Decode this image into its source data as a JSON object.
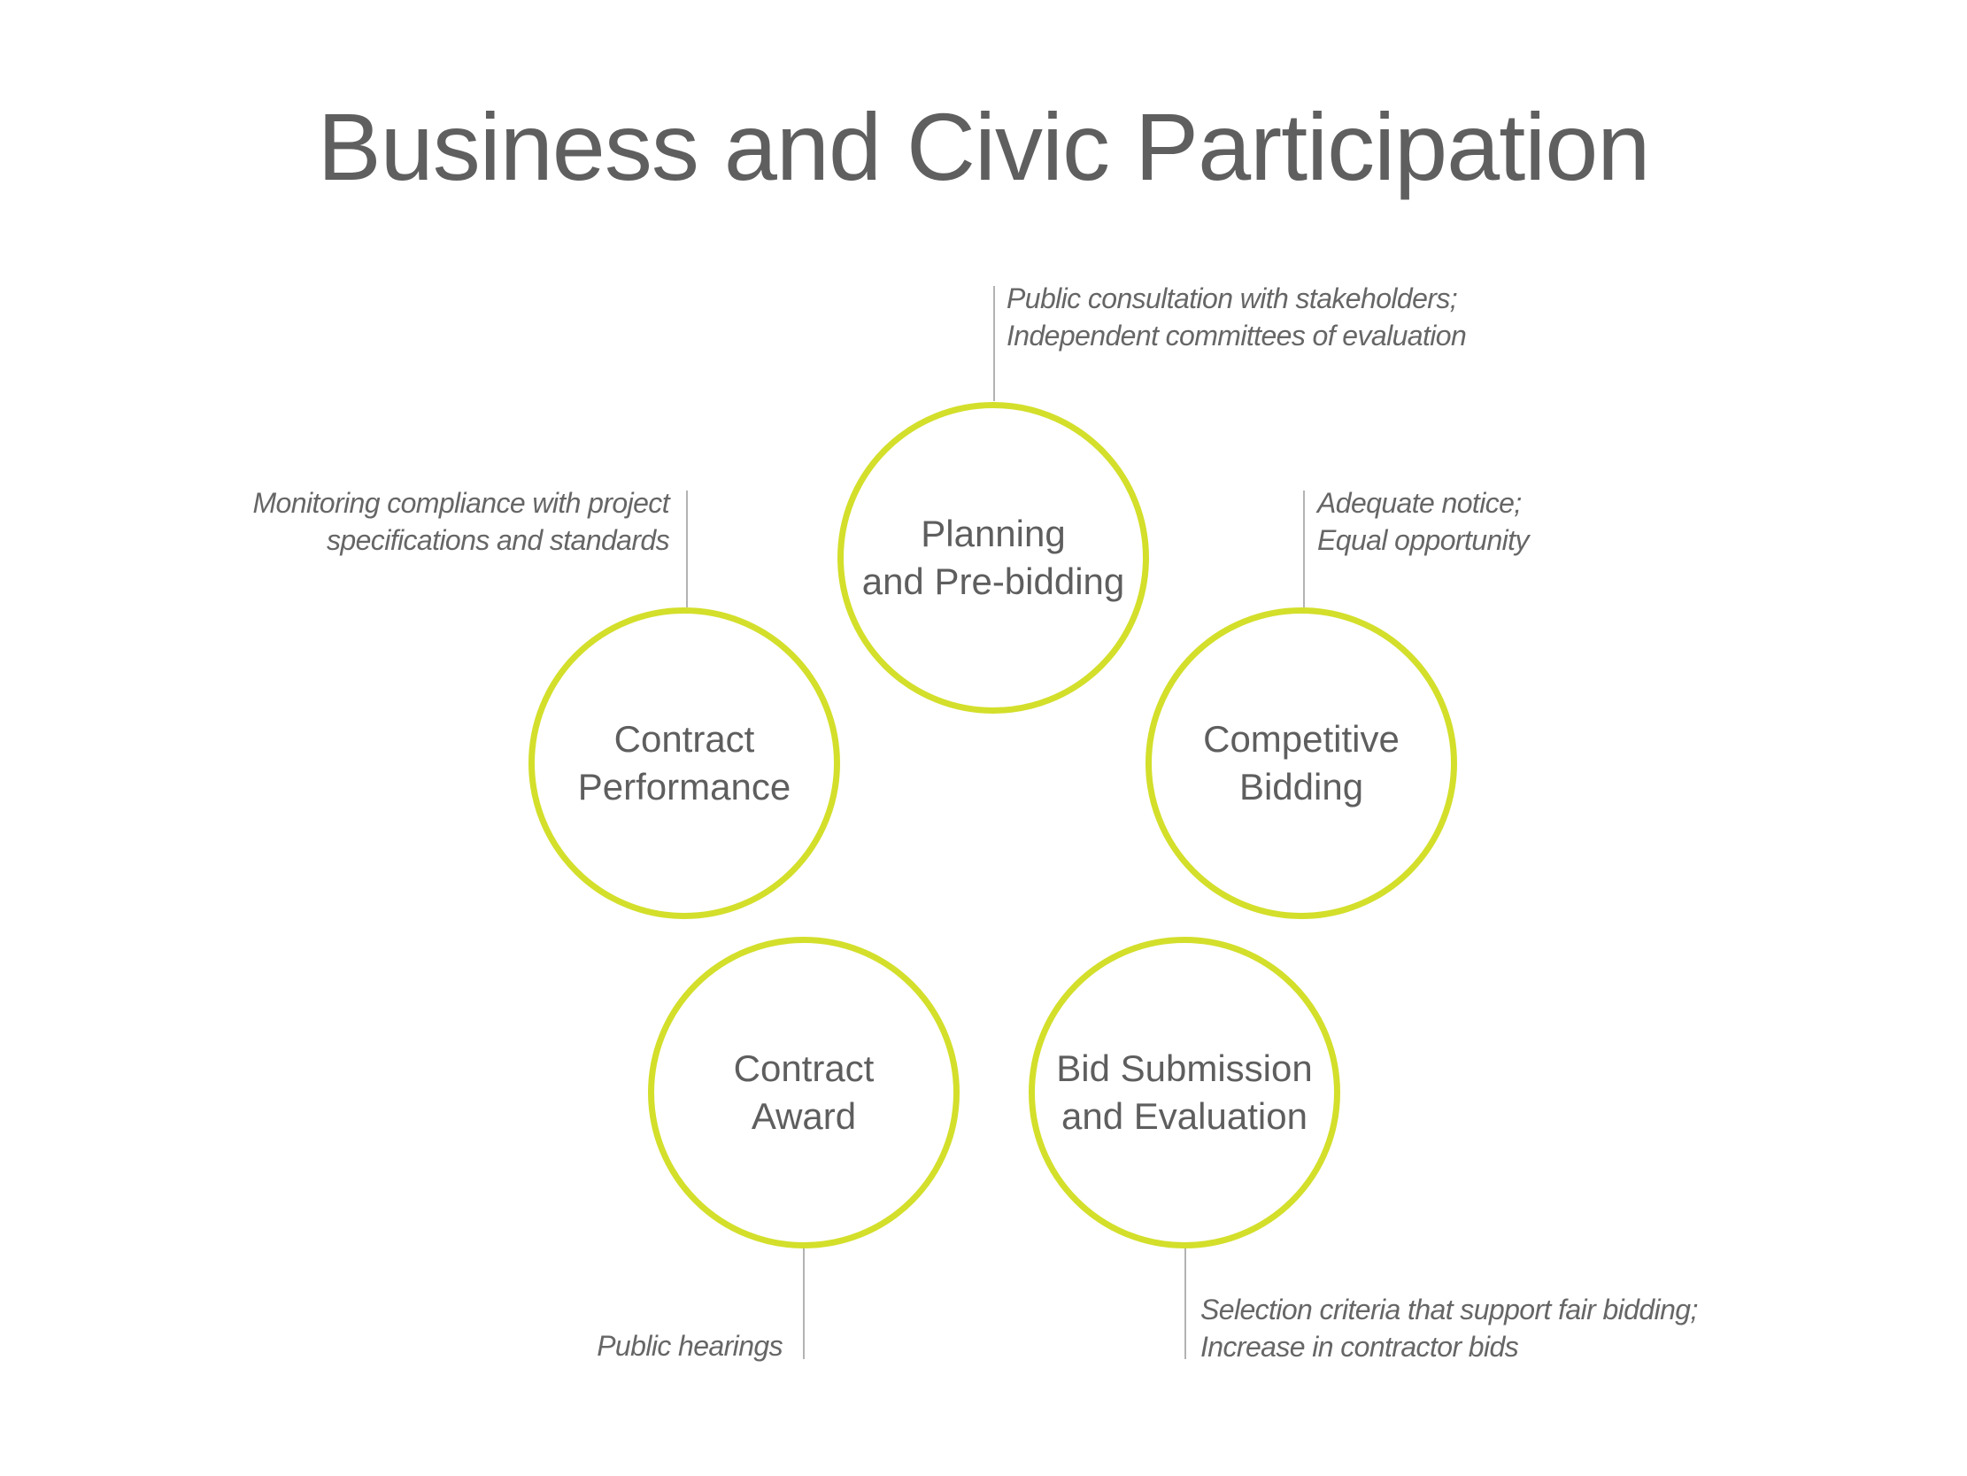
{
  "title": "Business and Civic Participation",
  "stages": {
    "planning": {
      "label": "Planning\nand Pre-bidding"
    },
    "competitive_bidding": {
      "label": "Competitive\nBidding"
    },
    "bid_submission": {
      "label": "Bid Submission\nand Evaluation"
    },
    "contract_award": {
      "label": "Contract\nAward"
    },
    "contract_performance": {
      "label": "Contract\nPerformance"
    }
  },
  "notes": {
    "planning": [
      "Public consultation with stakeholders;",
      "Independent committees of evaluation"
    ],
    "competitive_bidding": [
      "Adequate notice;",
      "Equal opportunity"
    ],
    "bid_submission": [
      "Selection criteria that support fair bidding;",
      "Increase in contractor bids"
    ],
    "contract_award": [
      "Public hearings"
    ],
    "contract_performance": [
      "Monitoring compliance with project",
      "specifications and standards"
    ]
  },
  "colors": {
    "ring": "#d3df2a",
    "text": "#5e5e5e",
    "connector": "#b3b3b3"
  }
}
